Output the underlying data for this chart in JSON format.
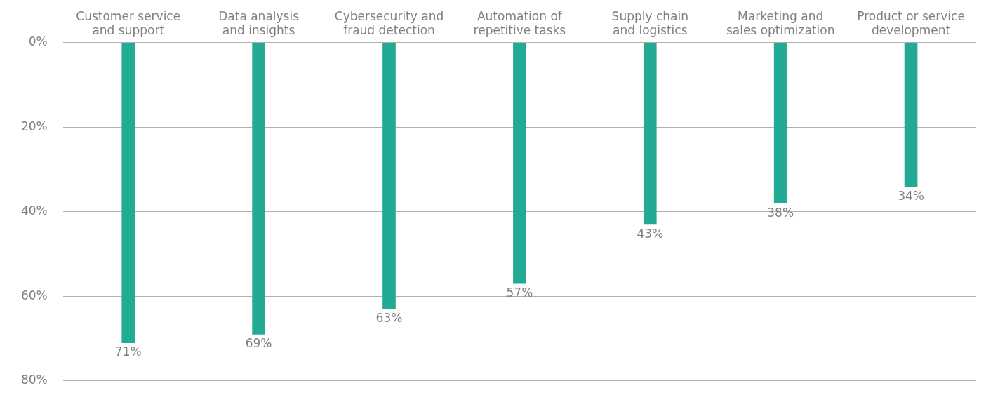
{
  "chart_data": {
    "type": "bar",
    "categories": [
      "Customer service and support",
      "Data analysis and insights",
      "Cybersecurity and fraud detection",
      "Automation of repetitive tasks",
      "Supply chain and logistics",
      "Marketing and sales optimization",
      "Product or service development"
    ],
    "values": [
      71,
      69,
      63,
      57,
      43,
      38,
      34
    ],
    "color": "#22aa94",
    "ylim": [
      80,
      0
    ],
    "yticks": [
      {
        "value": 0,
        "label": "0%"
      },
      {
        "value": 20,
        "label": "20%"
      },
      {
        "value": 40,
        "label": "40%"
      },
      {
        "value": 60,
        "label": "60%"
      },
      {
        "value": 80,
        "label": "80%"
      }
    ],
    "grid": "y",
    "data_labels": true,
    "value_labels": [
      "71%",
      "69%",
      "63%",
      "57%",
      "43%",
      "38%",
      "34%"
    ]
  }
}
